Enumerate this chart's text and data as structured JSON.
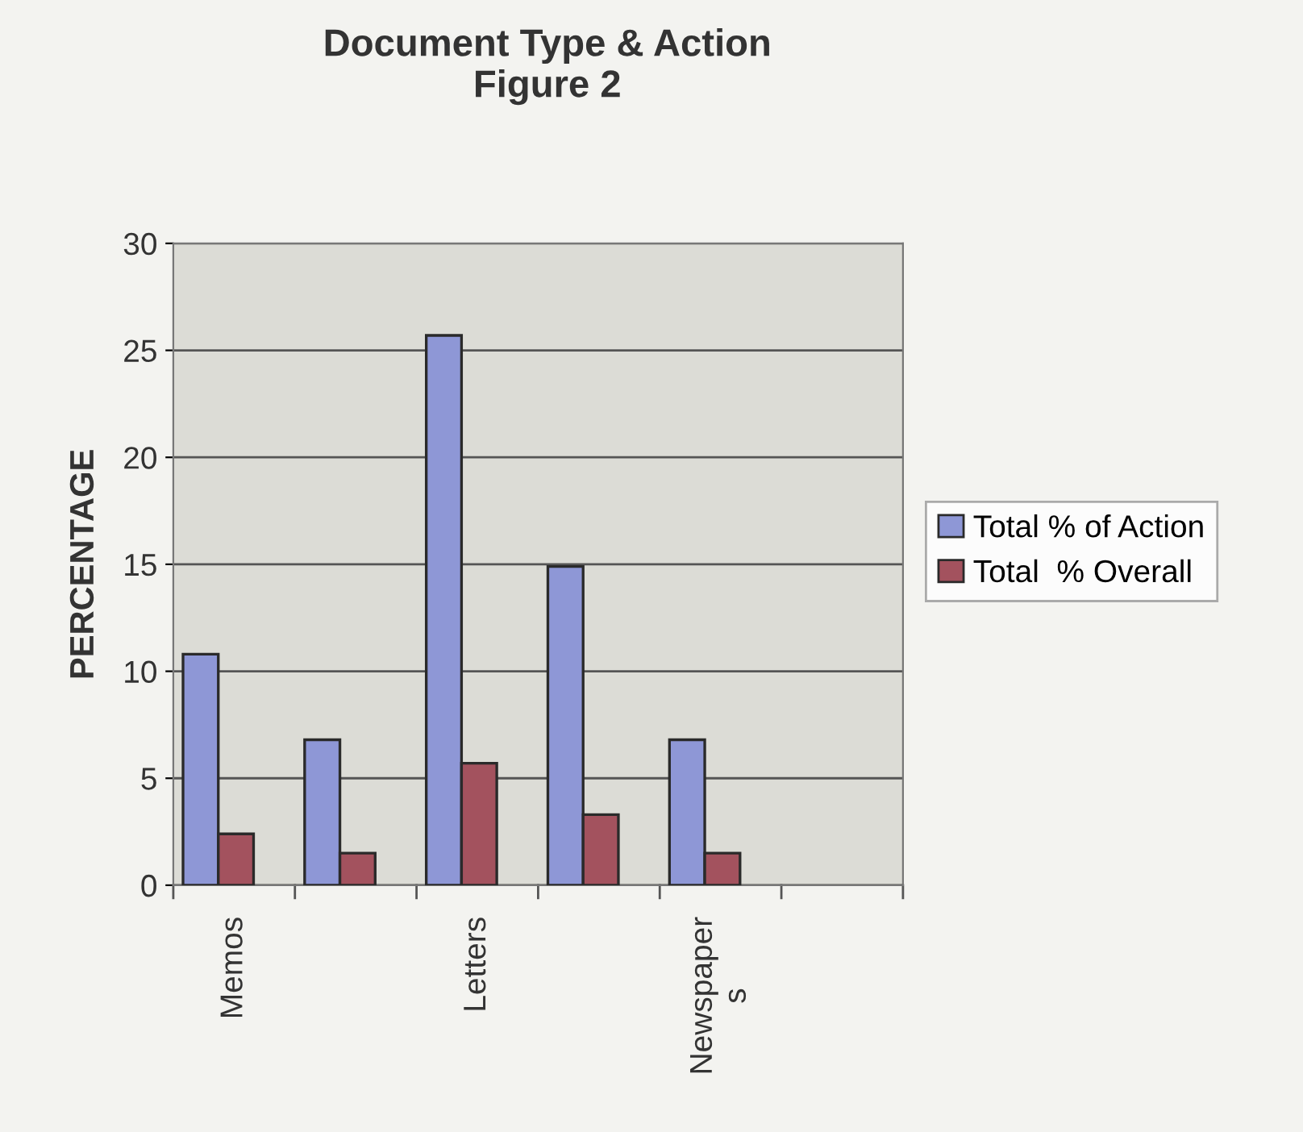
{
  "chart_data": {
    "type": "bar",
    "title": "Document Type & Action\nFigure 2",
    "ylabel": "PERCENTAGE",
    "categories": [
      "Memos",
      null,
      "Letters",
      null,
      "Newspaper\ns",
      null
    ],
    "series": [
      {
        "name": "Total % of Action",
        "color": "#8e97d6",
        "values": [
          10.8,
          6.8,
          25.7,
          14.9,
          6.8,
          null
        ]
      },
      {
        "name": "Total  % Overall",
        "color": "#a3525e",
        "values": [
          2.4,
          1.5,
          5.7,
          3.3,
          1.5,
          null
        ]
      }
    ],
    "ylim": [
      0,
      30
    ],
    "yticks": [
      0,
      5,
      10,
      15,
      20,
      25,
      30
    ],
    "grid": "y",
    "legend": "right"
  }
}
